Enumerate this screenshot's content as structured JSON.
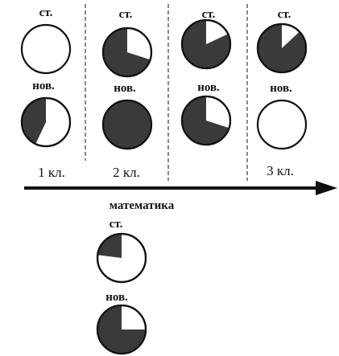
{
  "labels": {
    "old": "ст.",
    "new": "нов.",
    "grade1": "1 кл.",
    "grade2": "2 кл.",
    "grade3": "3 кл.",
    "subject": "математика"
  },
  "colors": {
    "ink": "#111111",
    "shade": "#3a3a3a",
    "background": "#ffffff"
  },
  "chart_data": {
    "type": "pie",
    "shaded_fractions": {
      "stage1_old": 0.0,
      "stage1_new": 0.43,
      "stage2_old": 0.7,
      "stage2_new": 1.0,
      "stage3_old": 0.82,
      "stage3_new": 0.7,
      "stage4_old": 0.87,
      "stage4_new": 0.0,
      "math_old": 0.23,
      "math_new": 0.75
    }
  }
}
